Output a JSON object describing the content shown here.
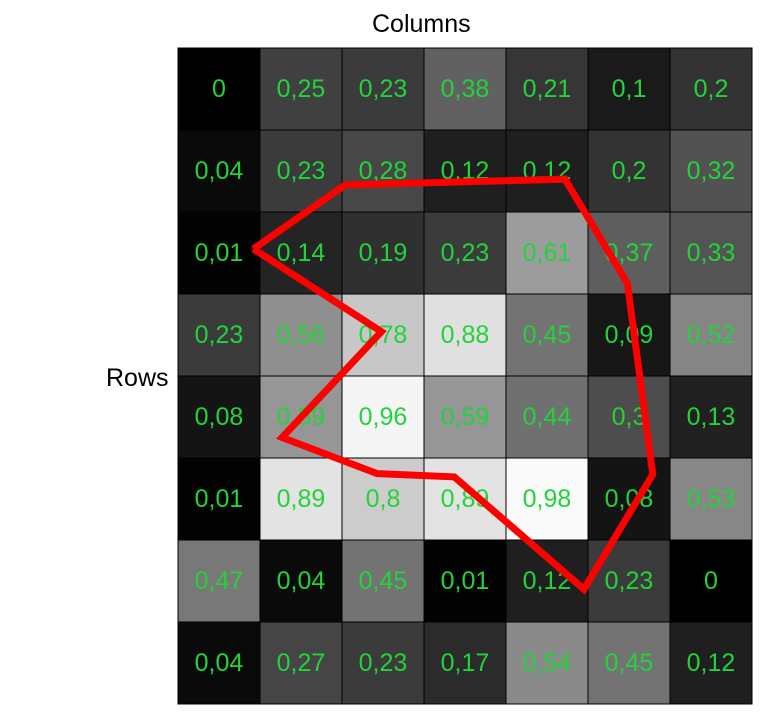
{
  "labels": {
    "columns": "Columns",
    "rows": "Rows"
  },
  "colors": {
    "value_text": "#22d33a",
    "path": "#ff0000",
    "cell_border": "#000000"
  },
  "grid": {
    "values": [
      [
        "0",
        "0,25",
        "0,23",
        "0,38",
        "0,21",
        "0,1",
        "0,2"
      ],
      [
        "0,04",
        "0,23",
        "0,28",
        "0,12",
        "0,12",
        "0,2",
        "0,32"
      ],
      [
        "0,01",
        "0,14",
        "0,19",
        "0,23",
        "0,61",
        "0,37",
        "0,33"
      ],
      [
        "0,23",
        "0,56",
        "0,78",
        "0,88",
        "0,45",
        "0,09",
        "0,52"
      ],
      [
        "0,08",
        "0,59",
        "0,96",
        "0,59",
        "0,44",
        "0,3",
        "0,13"
      ],
      [
        "0,01",
        "0,89",
        "0,8",
        "0,89",
        "0,98",
        "0,08",
        "0,53"
      ],
      [
        "0,47",
        "0,04",
        "0,45",
        "0,01",
        "0,12",
        "0,23",
        "0"
      ],
      [
        "0,04",
        "0,27",
        "0,23",
        "0,17",
        "0,54",
        "0,45",
        "0,12"
      ]
    ]
  },
  "path": {
    "description_points": [
      [
        0.92,
        2.45
      ],
      [
        2.04,
        1.67
      ],
      [
        4.72,
        1.6
      ],
      [
        5.48,
        2.87
      ],
      [
        5.79,
        5.2
      ],
      [
        4.95,
        6.6
      ],
      [
        3.37,
        5.23
      ],
      [
        2.43,
        5.19
      ],
      [
        1.27,
        4.75
      ],
      [
        2.48,
        3.46
      ],
      [
        0.92,
        2.45
      ]
    ]
  }
}
